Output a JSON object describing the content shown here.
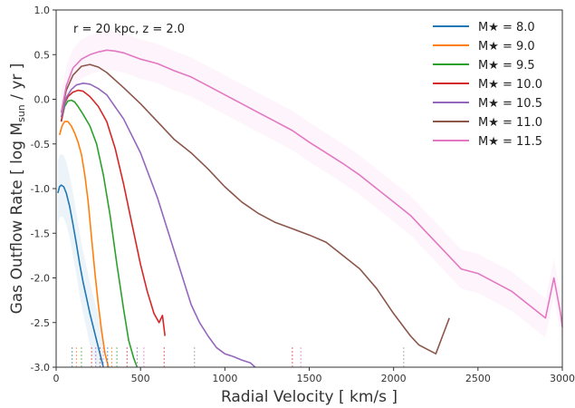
{
  "chart_data": {
    "type": "line",
    "title": "",
    "annotation": "r =  20 kpc, z = 2.0",
    "xlabel": "Radial Velocity [ km/s ]",
    "ylabel": "Gas Outflow Rate [ log M",
    "ylabel_sub": "sun",
    "ylabel_tail": " / yr ]",
    "xlim": [
      0,
      3000
    ],
    "ylim": [
      -3.0,
      1.0
    ],
    "xticks": [
      "0",
      "500",
      "1000",
      "1500",
      "2000",
      "2500",
      "3000"
    ],
    "yticks": [
      "-3.0",
      "-2.5",
      "-2.0",
      "-1.5",
      "-1.0",
      "-0.5",
      "0.0",
      "0.5",
      "1.0"
    ],
    "legend_position": "top-right",
    "series": [
      {
        "name": "M★ = 8.0",
        "color": "#1f77b4",
        "x": [
          10,
          20,
          30,
          45,
          60,
          80,
          100,
          120,
          140,
          160,
          180,
          200,
          220,
          240,
          260,
          280
        ],
        "y": [
          -1.05,
          -0.98,
          -0.96,
          -0.98,
          -1.05,
          -1.2,
          -1.4,
          -1.62,
          -1.85,
          -2.05,
          -2.22,
          -2.4,
          -2.55,
          -2.7,
          -2.85,
          -3.0
        ]
      },
      {
        "name": "M★ = 9.0",
        "color": "#ff7f0e",
        "x": [
          20,
          35,
          50,
          70,
          90,
          110,
          130,
          150,
          170,
          190,
          210,
          230,
          250,
          270,
          290,
          310
        ],
        "y": [
          -0.4,
          -0.3,
          -0.25,
          -0.25,
          -0.3,
          -0.38,
          -0.48,
          -0.62,
          -0.85,
          -1.15,
          -1.55,
          -1.95,
          -2.3,
          -2.6,
          -2.85,
          -3.0
        ]
      },
      {
        "name": "M★ = 9.5",
        "color": "#2ca02c",
        "x": [
          30,
          50,
          70,
          90,
          110,
          130,
          160,
          200,
          240,
          280,
          320,
          360,
          400,
          430,
          460,
          480
        ],
        "y": [
          -0.25,
          -0.08,
          -0.02,
          -0.01,
          -0.03,
          -0.08,
          -0.17,
          -0.3,
          -0.5,
          -0.85,
          -1.3,
          -1.85,
          -2.35,
          -2.7,
          -2.9,
          -3.0
        ]
      },
      {
        "name": "M★ = 10.0",
        "color": "#d62728",
        "x": [
          30,
          50,
          70,
          100,
          130,
          160,
          200,
          250,
          300,
          350,
          400,
          450,
          500,
          540,
          580,
          610,
          630,
          645
        ],
        "y": [
          -0.25,
          -0.05,
          0.03,
          0.08,
          0.1,
          0.09,
          0.03,
          -0.08,
          -0.25,
          -0.55,
          -0.95,
          -1.4,
          -1.85,
          -2.15,
          -2.4,
          -2.5,
          -2.42,
          -2.65
        ]
      },
      {
        "name": "M★ = 10.5",
        "color": "#9467bd",
        "x": [
          30,
          60,
          90,
          120,
          160,
          200,
          250,
          300,
          400,
          500,
          600,
          700,
          800,
          850,
          900,
          950,
          1000,
          1050,
          1100,
          1150,
          1180
        ],
        "y": [
          -0.2,
          0.02,
          0.11,
          0.16,
          0.18,
          0.17,
          0.12,
          0.05,
          -0.22,
          -0.6,
          -1.1,
          -1.7,
          -2.3,
          -2.5,
          -2.65,
          -2.78,
          -2.85,
          -2.88,
          -2.92,
          -2.95,
          -3.0
        ]
      },
      {
        "name": "M★ = 11.0",
        "color": "#8c564b",
        "x": [
          30,
          60,
          100,
          150,
          200,
          250,
          300,
          400,
          500,
          600,
          700,
          800,
          900,
          1000,
          1100,
          1200,
          1300,
          1400,
          1500,
          1600,
          1700,
          1800,
          1900,
          2000,
          2100,
          2150,
          2200,
          2250,
          2300,
          2330
        ],
        "y": [
          -0.15,
          0.1,
          0.27,
          0.37,
          0.39,
          0.36,
          0.3,
          0.13,
          -0.05,
          -0.25,
          -0.45,
          -0.6,
          -0.78,
          -0.98,
          -1.15,
          -1.28,
          -1.38,
          -1.45,
          -1.52,
          -1.6,
          -1.75,
          -1.9,
          -2.12,
          -2.4,
          -2.65,
          -2.75,
          -2.8,
          -2.85,
          -2.6,
          -2.45
        ]
      },
      {
        "name": "M★ = 11.5",
        "color": "#e377c2",
        "x": [
          30,
          60,
          100,
          150,
          200,
          250,
          300,
          350,
          400,
          500,
          600,
          700,
          800,
          900,
          1000,
          1100,
          1200,
          1300,
          1400,
          1500,
          1600,
          1700,
          1800,
          1900,
          2000,
          2100,
          2200,
          2300,
          2400,
          2500,
          2600,
          2700,
          2800,
          2900,
          2950,
          2990,
          3000
        ],
        "y": [
          -0.15,
          0.15,
          0.35,
          0.45,
          0.5,
          0.53,
          0.55,
          0.54,
          0.52,
          0.45,
          0.4,
          0.32,
          0.25,
          0.15,
          0.05,
          -0.05,
          -0.15,
          -0.25,
          -0.35,
          -0.48,
          -0.6,
          -0.72,
          -0.85,
          -1.0,
          -1.15,
          -1.3,
          -1.5,
          -1.7,
          -1.9,
          -1.95,
          -2.05,
          -2.15,
          -2.3,
          -2.45,
          -2.0,
          -2.4,
          -2.55
        ]
      }
    ]
  }
}
